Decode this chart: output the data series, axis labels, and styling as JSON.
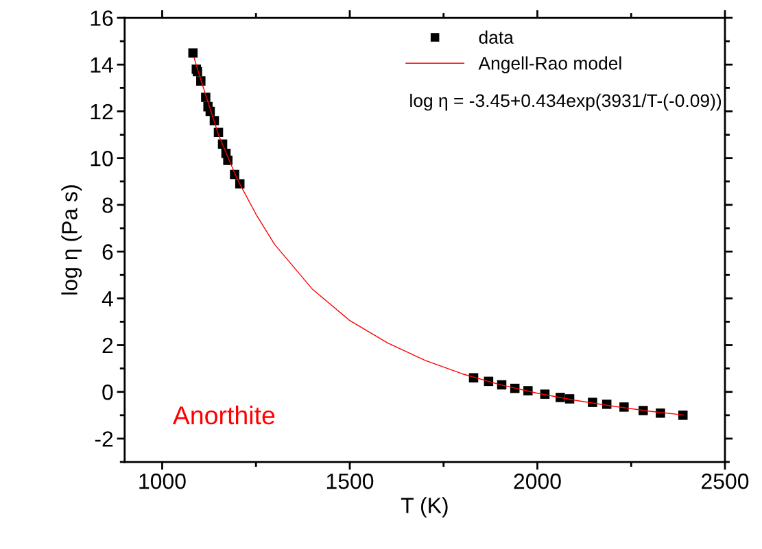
{
  "chart_data": {
    "type": "scatter",
    "xlabel": "T (K)",
    "ylabel": "log η (Pa s)",
    "annotations": [
      "log η = -3.45+0.434exp(3931/T-(-0.09))",
      "Anorthite"
    ],
    "xlim": [
      900,
      2500
    ],
    "xticks": [
      1000,
      {
        "value": 1250,
        "label": null
      },
      1500,
      {
        "value": 1750,
        "label": null
      },
      2000,
      {
        "value": 2250,
        "label": null
      },
      2500
    ],
    "ylim": [
      -3,
      16
    ],
    "yticks": [
      {
        "value": -3,
        "label": null
      },
      -2,
      {
        "value": -1,
        "label": null
      },
      0,
      {
        "value": 1,
        "label": null
      },
      2,
      {
        "value": 3,
        "label": null
      },
      4,
      {
        "value": 5,
        "label": null
      },
      6,
      {
        "value": 7,
        "label": null
      },
      8,
      {
        "value": 9,
        "label": null
      },
      10,
      {
        "value": 11,
        "label": null
      },
      12,
      {
        "value": 13,
        "label": null
      },
      14,
      {
        "value": 15,
        "label": null
      },
      16
    ],
    "grid": false,
    "legend": "top right",
    "series": [
      {
        "name": "data",
        "marker": "square",
        "color": "#000000",
        "x": [
          1082,
          1091,
          1094,
          1103,
          1116,
          1122,
          1128,
          1139,
          1150,
          1161,
          1170,
          1175,
          1193,
          1207,
          1830,
          1870,
          1905,
          1940,
          1975,
          2020,
          2061,
          2086,
          2147,
          2185,
          2231,
          2282,
          2328,
          2388
        ],
        "values": [
          14.5,
          13.8,
          13.7,
          13.3,
          12.6,
          12.2,
          12.0,
          11.6,
          11.1,
          10.6,
          10.2,
          9.9,
          9.3,
          8.9,
          0.6,
          0.45,
          0.3,
          0.15,
          0.05,
          -0.1,
          -0.24,
          -0.3,
          -0.45,
          -0.53,
          -0.65,
          -0.8,
          -0.91,
          -1.0
        ]
      },
      {
        "name": "Angell-Rao model",
        "type": "line",
        "marker": "none",
        "line_style": "solid",
        "color": "#ff0000",
        "x": [
          1085,
          1100,
          1150,
          1200,
          1250,
          1300,
          1400,
          1500,
          1600,
          1700,
          1800,
          1900,
          2000,
          2100,
          2200,
          2300,
          2390
        ],
        "values": [
          14.3,
          13.5,
          11.0,
          9.1,
          7.6,
          6.3,
          4.4,
          3.05,
          2.1,
          1.35,
          0.77,
          0.31,
          -0.06,
          -0.36,
          -0.61,
          -0.83,
          -0.99
        ]
      }
    ]
  }
}
